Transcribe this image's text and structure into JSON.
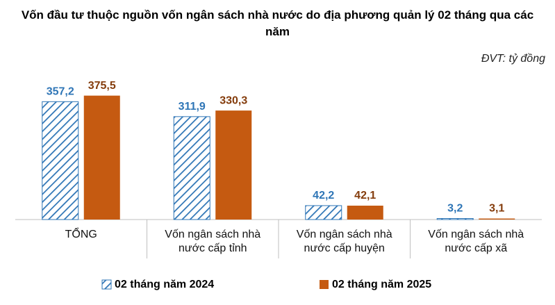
{
  "chart_data": {
    "type": "bar",
    "title": "Vốn đầu tư thuộc nguồn vốn ngân sách nhà nước do địa phương quản lý 02 tháng qua các năm",
    "unit": "ĐVT: tỷ đồng",
    "categories": [
      "TỔNG",
      "Vốn ngân sách nhà nước cấp tỉnh",
      "Vốn ngân sách nhà nước cấp huyện",
      "Vốn ngân sách nhà nước cấp xã"
    ],
    "series": [
      {
        "name": "02 tháng năm 2024",
        "color": "#2e75b6",
        "pattern": "hatch",
        "label_color": "#2e75b6",
        "values": [
          357.2,
          311.9,
          42.2,
          3.2
        ],
        "value_labels": [
          "357,2",
          "311,9",
          "42,2",
          "3,2"
        ]
      },
      {
        "name": "02 tháng năm 2025",
        "color": "#c55a11",
        "pattern": "solid",
        "label_color": "#843c0c",
        "values": [
          375.5,
          330.3,
          42.1,
          3.1
        ],
        "value_labels": [
          "375,5",
          "330,3",
          "42,1",
          "3,1"
        ]
      }
    ],
    "ylim": [
      0,
      400
    ]
  }
}
